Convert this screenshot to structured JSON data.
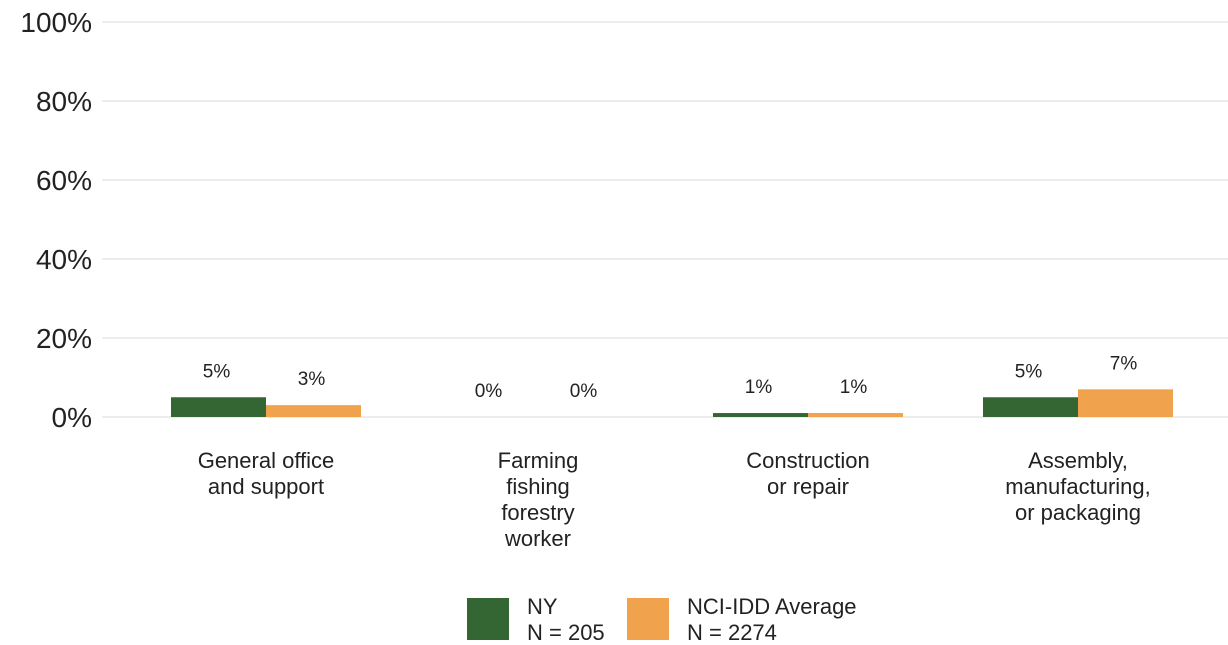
{
  "chart_data": {
    "type": "bar",
    "categories": [
      [
        "General office",
        "and support"
      ],
      [
        "Farming",
        "fishing",
        "forestry",
        "worker"
      ],
      [
        "Construction",
        "or repair"
      ],
      [
        "Assembly,",
        "manufacturing,",
        "or packaging"
      ]
    ],
    "series": [
      {
        "name": "NY",
        "n_label": "N = 205",
        "color": "#336633",
        "values": [
          5,
          0,
          1,
          5
        ],
        "labels": [
          "5%",
          "0%",
          "1%",
          "5%"
        ]
      },
      {
        "name": "NCI-IDD Average",
        "n_label": "N = 2274",
        "color": "#f0a24c",
        "values": [
          3,
          0,
          1,
          7
        ],
        "labels": [
          "3%",
          "0%",
          "1%",
          "7%"
        ]
      }
    ],
    "ylim": [
      0,
      100
    ],
    "yticks": [
      0,
      20,
      40,
      60,
      80,
      100
    ],
    "ytick_labels": [
      "0%",
      "20%",
      "40%",
      "60%",
      "80%",
      "100%"
    ],
    "grid": true,
    "legend": "bottom-center"
  }
}
